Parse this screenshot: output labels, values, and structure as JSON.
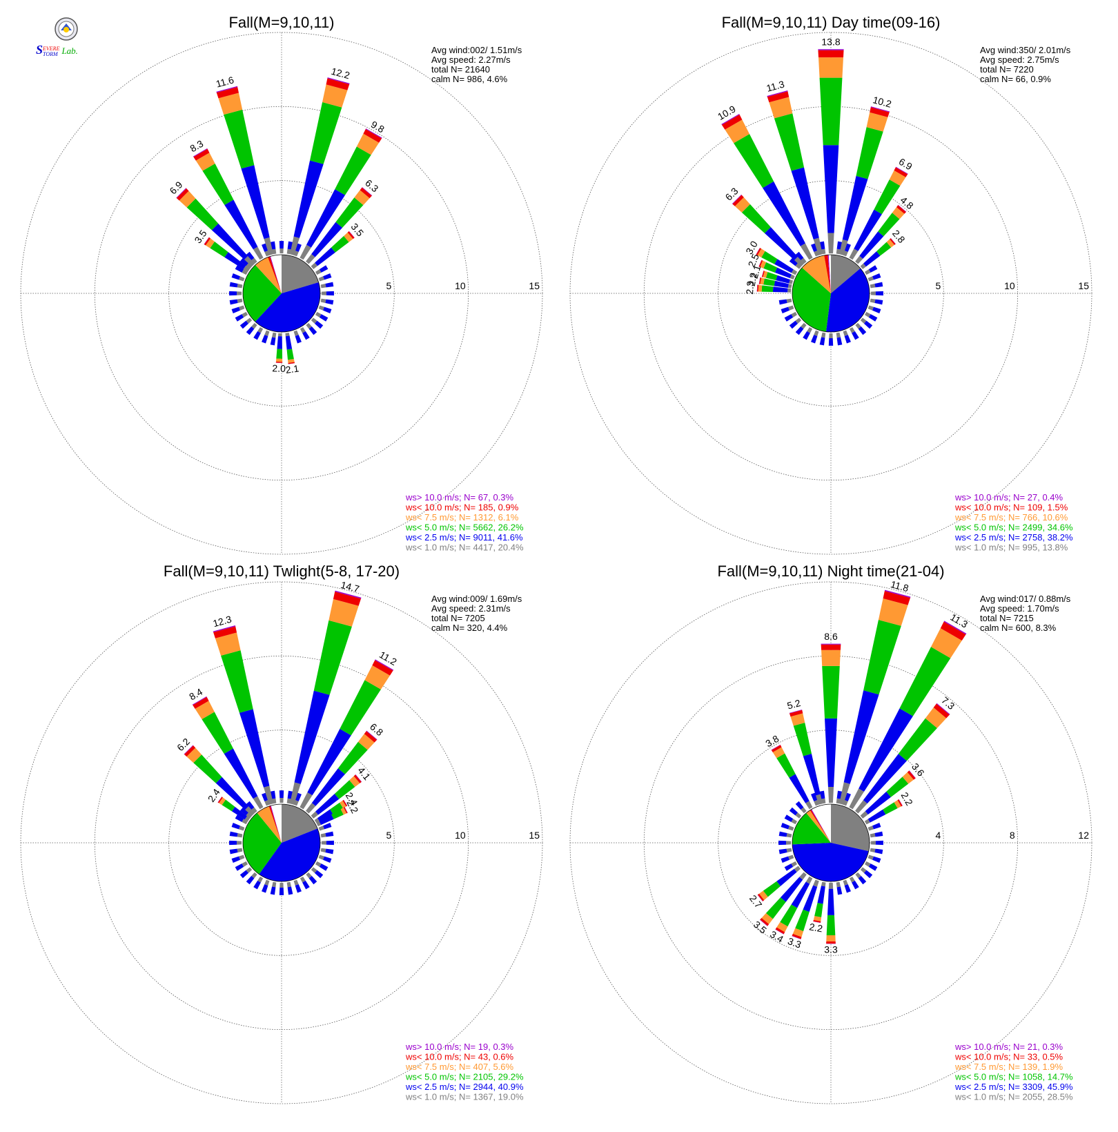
{
  "logo": {
    "text_s": "S",
    "text_severe": "EVERE",
    "text_storm": "TORM",
    "text_lab": "Lab."
  },
  "colors": {
    "gt10": "#9900cc",
    "lt10": "#ee0000",
    "lt7_5": "#ff9933",
    "lt5": "#00c400",
    "lt2_5": "#0000ee",
    "lt1": "#808080",
    "calm": "#ffffff",
    "grid": "#555555"
  },
  "chart_data": [
    {
      "type": "wind-rose",
      "title": "Fall(M=9,10,11)",
      "rings": [
        "5",
        "10",
        "15"
      ],
      "ring_values": [
        5,
        10,
        15
      ],
      "stats": [
        "Avg wind:002/ 1.51m/s",
        "Avg speed: 2.27m/s",
        "total N=      21640",
        "calm N=    986,   4.6%"
      ],
      "legend": [
        {
          "text": "ws> 10.0 m/s; N=     67,   0.3%",
          "color": "gt10"
        },
        {
          "text": "ws< 10.0 m/s; N=   185,   0.9%",
          "color": "lt10"
        },
        {
          "text": "ws<  7.5 m/s; N=  1312,   6.1%",
          "color": "lt7_5"
        },
        {
          "text": "ws<  5.0 m/s; N=  5662, 26.2%",
          "color": "lt5"
        },
        {
          "text": "ws<  2.5 m/s; N=  9011, 41.6%",
          "color": "lt2_5"
        },
        {
          "text": "ws<  1.0 m/s; N=  4417, 20.4%",
          "color": "lt1"
        }
      ],
      "pie": [
        20.4,
        41.6,
        26.2,
        6.1,
        0.9,
        0.3,
        4.6
      ],
      "bars": [
        {
          "dir": 345,
          "value": 11.6,
          "label": "11.6"
        },
        {
          "dir": 15,
          "value": 12.2,
          "label": "12.2"
        },
        {
          "dir": 30,
          "value": 9.8,
          "label": "9.8"
        },
        {
          "dir": 40,
          "value": 6.3,
          "label": "6.3"
        },
        {
          "dir": 50,
          "value": 3.5,
          "label": "3.5"
        },
        {
          "dir": 330,
          "value": 8.3,
          "label": "8.3"
        },
        {
          "dir": 315,
          "value": 6.9,
          "label": "6.9"
        },
        {
          "dir": 305,
          "value": 3.5,
          "label": "3.5"
        },
        {
          "dir": 182,
          "value": 2.0,
          "label": "2.0"
        },
        {
          "dir": 172,
          "value": 2.1,
          "label": "2.1"
        }
      ]
    },
    {
      "type": "wind-rose",
      "title": "Fall(M=9,10,11) Day time(09-16)",
      "rings": [
        "5",
        "10",
        "15"
      ],
      "ring_values": [
        5,
        10,
        15
      ],
      "stats": [
        "Avg wind:350/ 2.01m/s",
        "Avg speed: 2.75m/s",
        "total N=        7220",
        "calm N=      66,   0.9%"
      ],
      "legend": [
        {
          "text": "ws> 10.0 m/s; N=     27,   0.4%",
          "color": "gt10"
        },
        {
          "text": "ws< 10.0 m/s; N=   109,   1.5%",
          "color": "lt10"
        },
        {
          "text": "ws<  7.5 m/s; N=    766, 10.6%",
          "color": "lt7_5"
        },
        {
          "text": "ws<  5.0 m/s; N=  2499, 34.6%",
          "color": "lt5"
        },
        {
          "text": "ws<  2.5 m/s; N=  2758, 38.2%",
          "color": "lt2_5"
        },
        {
          "text": "ws<  1.0 m/s; N=    995, 13.8%",
          "color": "lt1"
        }
      ],
      "pie": [
        13.8,
        38.2,
        34.6,
        10.6,
        1.5,
        0.4,
        0.9
      ],
      "bars": [
        {
          "dir": 0,
          "value": 13.8,
          "label": "13.8"
        },
        {
          "dir": 345,
          "value": 11.3,
          "label": "11.3"
        },
        {
          "dir": 330,
          "value": 10.9,
          "label": "10.9"
        },
        {
          "dir": 15,
          "value": 10.2,
          "label": "10.2"
        },
        {
          "dir": 30,
          "value": 6.9,
          "label": "6.9"
        },
        {
          "dir": 40,
          "value": 4.8,
          "label": "4.8"
        },
        {
          "dir": 50,
          "value": 2.8,
          "label": "2.8"
        },
        {
          "dir": 315,
          "value": 6.3,
          "label": "6.3"
        },
        {
          "dir": 300,
          "value": 3.0,
          "label": "3.0"
        },
        {
          "dir": 293,
          "value": 2.5,
          "label": "2.5"
        },
        {
          "dir": 286,
          "value": 2.1,
          "label": "2.1"
        },
        {
          "dir": 280,
          "value": 2.2,
          "label": "2.2"
        },
        {
          "dir": 274,
          "value": 2.3,
          "label": "2.3"
        }
      ]
    },
    {
      "type": "wind-rose",
      "title": "Fall(M=9,10,11) Twlight(5-8, 17-20)",
      "rings": [
        "5",
        "10",
        "15"
      ],
      "ring_values": [
        5,
        10,
        15
      ],
      "stats": [
        "Avg wind:009/ 1.69m/s",
        "Avg speed: 2.31m/s",
        "total N=        7205",
        "calm N=    320,   4.4%"
      ],
      "legend": [
        {
          "text": "ws> 10.0 m/s; N=     19,   0.3%",
          "color": "gt10"
        },
        {
          "text": "ws< 10.0 m/s; N=     43,   0.6%",
          "color": "lt10"
        },
        {
          "text": "ws<  7.5 m/s; N=    407,   5.6%",
          "color": "lt7_5"
        },
        {
          "text": "ws<  5.0 m/s; N=  2105, 29.2%",
          "color": "lt5"
        },
        {
          "text": "ws<  2.5 m/s; N=  2944, 40.9%",
          "color": "lt2_5"
        },
        {
          "text": "ws<  1.0 m/s; N=  1367, 19.0%",
          "color": "lt1"
        }
      ],
      "pie": [
        19.0,
        40.9,
        29.2,
        5.6,
        0.6,
        0.3,
        4.4
      ],
      "bars": [
        {
          "dir": 345,
          "value": 12.3,
          "label": "12.3"
        },
        {
          "dir": 15,
          "value": 14.7,
          "label": "14.7"
        },
        {
          "dir": 30,
          "value": 11.2,
          "label": "11.2"
        },
        {
          "dir": 40,
          "value": 6.8,
          "label": "6.8"
        },
        {
          "dir": 50,
          "value": 4.1,
          "label": "4.1"
        },
        {
          "dir": 58,
          "value": 2.4,
          "label": "2.4"
        },
        {
          "dir": 63,
          "value": 2.2,
          "label": "2.2"
        },
        {
          "dir": 330,
          "value": 8.4,
          "label": "8.4"
        },
        {
          "dir": 315,
          "value": 6.2,
          "label": "6.2"
        },
        {
          "dir": 305,
          "value": 2.4,
          "label": "2.4"
        }
      ]
    },
    {
      "type": "wind-rose",
      "title": "Fall(M=9,10,11) Night time(21-04)",
      "rings": [
        "4",
        "8",
        "12"
      ],
      "ring_values": [
        4,
        8,
        12
      ],
      "stats": [
        "Avg wind:017/ 0.88m/s",
        "Avg speed: 1.70m/s",
        "total N=        7215",
        "calm N=    600,   8.3%"
      ],
      "legend": [
        {
          "text": "ws> 10.0 m/s; N=     21,   0.3%",
          "color": "gt10"
        },
        {
          "text": "ws< 10.0 m/s; N=     33,   0.5%",
          "color": "lt10"
        },
        {
          "text": "ws<  7.5 m/s; N=    139,   1.9%",
          "color": "lt7_5"
        },
        {
          "text": "ws<  5.0 m/s; N=  1058, 14.7%",
          "color": "lt5"
        },
        {
          "text": "ws<  2.5 m/s; N=  3309, 45.9%",
          "color": "lt2_5"
        },
        {
          "text": "ws<  1.0 m/s; N=  2055, 28.5%",
          "color": "lt1"
        }
      ],
      "pie": [
        28.5,
        45.9,
        14.7,
        1.9,
        0.5,
        0.3,
        8.3
      ],
      "bars": [
        {
          "dir": 15,
          "value": 11.8,
          "label": "11.8"
        },
        {
          "dir": 30,
          "value": 11.3,
          "label": "11.3"
        },
        {
          "dir": 0,
          "value": 8.6,
          "label": "8.6"
        },
        {
          "dir": 40,
          "value": 7.3,
          "label": "7.3"
        },
        {
          "dir": 345,
          "value": 5.2,
          "label": "5.2"
        },
        {
          "dir": 330,
          "value": 3.8,
          "label": "3.8"
        },
        {
          "dir": 50,
          "value": 3.6,
          "label": "3.6"
        },
        {
          "dir": 60,
          "value": 2.2,
          "label": "2.2"
        },
        {
          "dir": 180,
          "value": 3.3,
          "label": "3.3"
        },
        {
          "dir": 190,
          "value": 2.2,
          "label": "2.2"
        },
        {
          "dir": 200,
          "value": 3.3,
          "label": "3.3"
        },
        {
          "dir": 210,
          "value": 3.4,
          "label": "3.4"
        },
        {
          "dir": 220,
          "value": 3.5,
          "label": "3.5"
        },
        {
          "dir": 232,
          "value": 2.7,
          "label": "2.7"
        }
      ]
    }
  ]
}
